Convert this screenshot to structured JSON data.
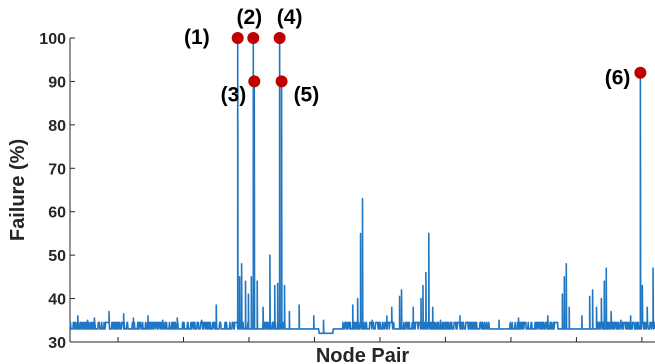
{
  "chart_data": {
    "type": "line",
    "xlabel": "Node Pair",
    "ylabel": "Failure (%)",
    "xlim": [
      0,
      600
    ],
    "ylim": [
      30,
      100
    ],
    "yticks": [
      30,
      40,
      50,
      60,
      70,
      80,
      90,
      100
    ],
    "xtick_count": 9,
    "grid": false,
    "line_color": "#1f77c4",
    "marker_color": "#c00000",
    "baseline": 33,
    "baseline_alt": 34.5,
    "noise_segments": [
      [
        0,
        185
      ],
      [
        195,
        220
      ],
      [
        280,
        430
      ],
      [
        450,
        500
      ],
      [
        540,
        600
      ]
    ],
    "spikes": [
      {
        "x": 8,
        "y": 36
      },
      {
        "x": 18,
        "y": 35
      },
      {
        "x": 25,
        "y": 35.5
      },
      {
        "x": 40,
        "y": 37
      },
      {
        "x": 55,
        "y": 36.5
      },
      {
        "x": 65,
        "y": 35.5
      },
      {
        "x": 80,
        "y": 36
      },
      {
        "x": 95,
        "y": 35
      },
      {
        "x": 110,
        "y": 35.5
      },
      {
        "x": 135,
        "y": 35
      },
      {
        "x": 150,
        "y": 38.5
      },
      {
        "x": 172,
        "y": 100
      },
      {
        "x": 174,
        "y": 45
      },
      {
        "x": 176,
        "y": 48
      },
      {
        "x": 180,
        "y": 44
      },
      {
        "x": 183,
        "y": 41
      },
      {
        "x": 186,
        "y": 45
      },
      {
        "x": 188,
        "y": 100
      },
      {
        "x": 189,
        "y": 90
      },
      {
        "x": 192,
        "y": 44
      },
      {
        "x": 198,
        "y": 38
      },
      {
        "x": 210,
        "y": 36
      },
      {
        "x": 215,
        "y": 100
      },
      {
        "x": 217,
        "y": 90
      },
      {
        "x": 220,
        "y": 43
      },
      {
        "x": 225,
        "y": 37
      },
      {
        "x": 235,
        "y": 38.5
      },
      {
        "x": 250,
        "y": 36
      },
      {
        "x": 260,
        "y": 35
      },
      {
        "x": 205,
        "y": 50
      },
      {
        "x": 210,
        "y": 43
      },
      {
        "x": 213,
        "y": 43.5
      },
      {
        "x": 290,
        "y": 38.5
      },
      {
        "x": 295,
        "y": 40
      },
      {
        "x": 298,
        "y": 55
      },
      {
        "x": 300,
        "y": 63
      },
      {
        "x": 310,
        "y": 35
      },
      {
        "x": 325,
        "y": 36
      },
      {
        "x": 330,
        "y": 38
      },
      {
        "x": 338,
        "y": 40.5
      },
      {
        "x": 340,
        "y": 42
      },
      {
        "x": 352,
        "y": 38
      },
      {
        "x": 360,
        "y": 40
      },
      {
        "x": 362,
        "y": 43
      },
      {
        "x": 365,
        "y": 46
      },
      {
        "x": 368,
        "y": 55
      },
      {
        "x": 372,
        "y": 38
      },
      {
        "x": 380,
        "y": 35
      },
      {
        "x": 400,
        "y": 36
      },
      {
        "x": 440,
        "y": 35
      },
      {
        "x": 460,
        "y": 35.5
      },
      {
        "x": 490,
        "y": 36
      },
      {
        "x": 505,
        "y": 41
      },
      {
        "x": 507,
        "y": 45
      },
      {
        "x": 509,
        "y": 48
      },
      {
        "x": 512,
        "y": 38
      },
      {
        "x": 525,
        "y": 36
      },
      {
        "x": 533,
        "y": 40.5
      },
      {
        "x": 536,
        "y": 42
      },
      {
        "x": 540,
        "y": 38
      },
      {
        "x": 545,
        "y": 40
      },
      {
        "x": 548,
        "y": 44
      },
      {
        "x": 550,
        "y": 47
      },
      {
        "x": 555,
        "y": 37
      },
      {
        "x": 565,
        "y": 35
      },
      {
        "x": 575,
        "y": 36
      },
      {
        "x": 585,
        "y": 92
      },
      {
        "x": 587,
        "y": 43
      },
      {
        "x": 592,
        "y": 38
      },
      {
        "x": 598,
        "y": 47
      }
    ],
    "highlighted_points": [
      {
        "label": "(1)",
        "x": 172,
        "y": 100
      },
      {
        "label": "(2)",
        "x": 188,
        "y": 100
      },
      {
        "label": "(3)",
        "x": 189,
        "y": 90
      },
      {
        "label": "(4)",
        "x": 215,
        "y": 100
      },
      {
        "label": "(5)",
        "x": 217,
        "y": 90
      },
      {
        "label": "(6)",
        "x": 585,
        "y": 92
      }
    ]
  }
}
